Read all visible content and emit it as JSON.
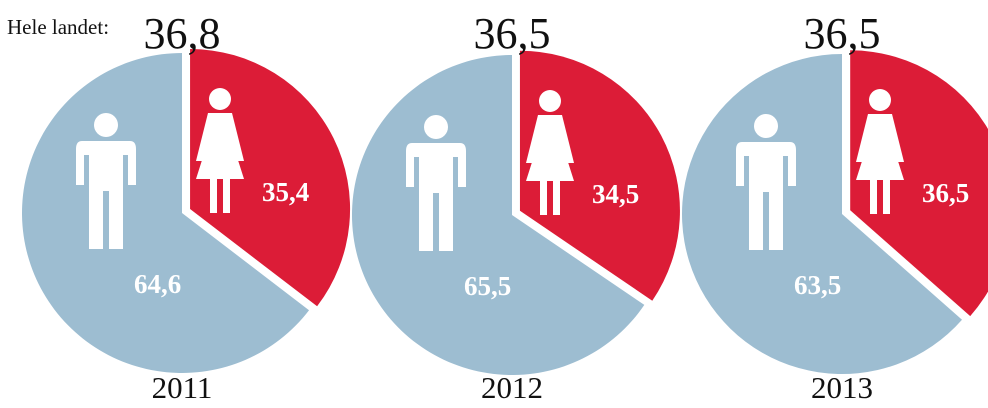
{
  "header": {
    "country_label": "Hele landet:"
  },
  "colors": {
    "men": "#9dbdd1",
    "women": "#dc1c37",
    "icon": "#ffffff",
    "text": "#111111"
  },
  "icons": {
    "men": "man-icon",
    "women": "woman-icon"
  },
  "chart_data": [
    {
      "type": "pie",
      "year": "2011",
      "total_label": "36,8",
      "slices": [
        {
          "group": "women",
          "value": 35.4,
          "label": "35,4"
        },
        {
          "group": "men",
          "value": 64.6,
          "label": "64,6"
        }
      ]
    },
    {
      "type": "pie",
      "year": "2012",
      "total_label": "36,5",
      "slices": [
        {
          "group": "women",
          "value": 34.5,
          "label": "34,5"
        },
        {
          "group": "men",
          "value": 65.5,
          "label": "65,5"
        }
      ]
    },
    {
      "type": "pie",
      "year": "2013",
      "total_label": "36,5",
      "slices": [
        {
          "group": "women",
          "value": 36.5,
          "label": "36,5"
        },
        {
          "group": "men",
          "value": 63.5,
          "label": "63,5"
        }
      ]
    }
  ]
}
